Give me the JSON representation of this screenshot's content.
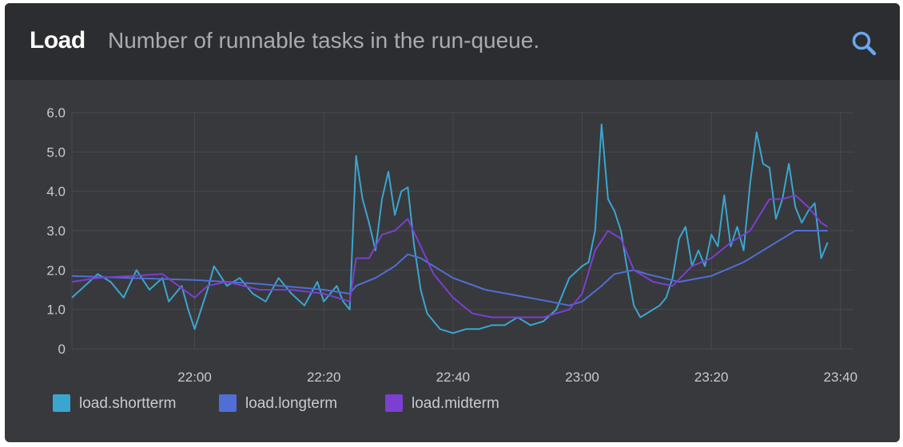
{
  "header": {
    "title": "Load",
    "subtitle": "Number of runnable tasks in the run-queue.",
    "search_icon": "search-icon"
  },
  "colors": {
    "panel_bg": "#38393c",
    "header_bg": "#2c2d30",
    "grid": "#48494d",
    "tick_text": "#c8cacd"
  },
  "chart_data": {
    "type": "line",
    "title": "Load",
    "subtitle": "Number of runnable tasks in the run-queue.",
    "xlabel": "",
    "ylabel": "",
    "x_ticks": [
      "22:00",
      "22:20",
      "22:40",
      "23:00",
      "23:20",
      "23:40"
    ],
    "y_ticks": [
      "0",
      "1.0",
      "2.0",
      "3.0",
      "4.0",
      "5.0",
      "6.0"
    ],
    "ylim": [
      0,
      6
    ],
    "xlim": [
      "21:41",
      "23:42"
    ],
    "grid": true,
    "legend_position": "bottom-left",
    "series": [
      {
        "name": "load.shortterm",
        "color": "#3aa6d0",
        "points": [
          [
            "21:41",
            1.3
          ],
          [
            "21:43",
            1.6
          ],
          [
            "21:45",
            1.9
          ],
          [
            "21:47",
            1.7
          ],
          [
            "21:49",
            1.3
          ],
          [
            "21:51",
            2.0
          ],
          [
            "21:53",
            1.5
          ],
          [
            "21:55",
            1.8
          ],
          [
            "21:56",
            1.2
          ],
          [
            "21:58",
            1.6
          ],
          [
            "21:59",
            1.0
          ],
          [
            "22:00",
            0.5
          ],
          [
            "22:02",
            1.5
          ],
          [
            "22:03",
            2.1
          ],
          [
            "22:05",
            1.6
          ],
          [
            "22:07",
            1.8
          ],
          [
            "22:09",
            1.4
          ],
          [
            "22:11",
            1.2
          ],
          [
            "22:13",
            1.8
          ],
          [
            "22:15",
            1.4
          ],
          [
            "22:17",
            1.1
          ],
          [
            "22:19",
            1.7
          ],
          [
            "22:20",
            1.2
          ],
          [
            "22:22",
            1.6
          ],
          [
            "22:23",
            1.2
          ],
          [
            "22:24",
            1.0
          ],
          [
            "22:25",
            4.9
          ],
          [
            "22:26",
            3.8
          ],
          [
            "22:27",
            3.2
          ],
          [
            "22:28",
            2.5
          ],
          [
            "22:29",
            3.8
          ],
          [
            "22:30",
            4.5
          ],
          [
            "22:31",
            3.4
          ],
          [
            "22:32",
            4.0
          ],
          [
            "22:33",
            4.1
          ],
          [
            "22:34",
            2.6
          ],
          [
            "22:35",
            1.5
          ],
          [
            "22:36",
            0.9
          ],
          [
            "22:37",
            0.7
          ],
          [
            "22:38",
            0.5
          ],
          [
            "22:40",
            0.4
          ],
          [
            "22:42",
            0.5
          ],
          [
            "22:44",
            0.5
          ],
          [
            "22:46",
            0.6
          ],
          [
            "22:48",
            0.6
          ],
          [
            "22:50",
            0.8
          ],
          [
            "22:52",
            0.6
          ],
          [
            "22:54",
            0.7
          ],
          [
            "22:56",
            1.0
          ],
          [
            "22:58",
            1.8
          ],
          [
            "23:00",
            2.1
          ],
          [
            "23:01",
            2.2
          ],
          [
            "23:02",
            3.0
          ],
          [
            "23:03",
            5.7
          ],
          [
            "23:04",
            3.8
          ],
          [
            "23:05",
            3.5
          ],
          [
            "23:06",
            3.0
          ],
          [
            "23:07",
            2.0
          ],
          [
            "23:08",
            1.1
          ],
          [
            "23:09",
            0.8
          ],
          [
            "23:10",
            0.9
          ],
          [
            "23:12",
            1.1
          ],
          [
            "23:13",
            1.3
          ],
          [
            "23:14",
            1.8
          ],
          [
            "23:15",
            2.8
          ],
          [
            "23:16",
            3.1
          ],
          [
            "23:17",
            2.1
          ],
          [
            "23:18",
            2.5
          ],
          [
            "23:19",
            2.1
          ],
          [
            "23:20",
            2.9
          ],
          [
            "23:21",
            2.6
          ],
          [
            "23:22",
            3.9
          ],
          [
            "23:23",
            2.6
          ],
          [
            "23:24",
            3.1
          ],
          [
            "23:25",
            2.5
          ],
          [
            "23:26",
            4.2
          ],
          [
            "23:27",
            5.5
          ],
          [
            "23:28",
            4.7
          ],
          [
            "23:29",
            4.6
          ],
          [
            "23:30",
            3.3
          ],
          [
            "23:31",
            3.8
          ],
          [
            "23:32",
            4.7
          ],
          [
            "23:33",
            3.6
          ],
          [
            "23:34",
            3.2
          ],
          [
            "23:35",
            3.5
          ],
          [
            "23:36",
            3.7
          ],
          [
            "23:37",
            2.3
          ],
          [
            "23:38",
            2.7
          ]
        ]
      },
      {
        "name": "load.longterm",
        "color": "#4f6fd6",
        "points": [
          [
            "21:41",
            1.85
          ],
          [
            "21:50",
            1.8
          ],
          [
            "22:00",
            1.75
          ],
          [
            "22:10",
            1.65
          ],
          [
            "22:20",
            1.5
          ],
          [
            "22:24",
            1.4
          ],
          [
            "22:25",
            1.6
          ],
          [
            "22:28",
            1.8
          ],
          [
            "22:31",
            2.1
          ],
          [
            "22:33",
            2.4
          ],
          [
            "22:35",
            2.3
          ],
          [
            "22:40",
            1.8
          ],
          [
            "22:45",
            1.5
          ],
          [
            "22:50",
            1.35
          ],
          [
            "22:55",
            1.2
          ],
          [
            "22:58",
            1.1
          ],
          [
            "23:00",
            1.2
          ],
          [
            "23:03",
            1.6
          ],
          [
            "23:05",
            1.9
          ],
          [
            "23:08",
            2.0
          ],
          [
            "23:10",
            1.9
          ],
          [
            "23:15",
            1.7
          ],
          [
            "23:20",
            1.85
          ],
          [
            "23:25",
            2.2
          ],
          [
            "23:30",
            2.7
          ],
          [
            "23:33",
            3.0
          ],
          [
            "23:36",
            3.0
          ],
          [
            "23:38",
            3.0
          ]
        ]
      },
      {
        "name": "load.midterm",
        "color": "#7b3fd1",
        "points": [
          [
            "21:41",
            1.7
          ],
          [
            "21:45",
            1.8
          ],
          [
            "21:50",
            1.85
          ],
          [
            "21:55",
            1.9
          ],
          [
            "22:00",
            1.3
          ],
          [
            "22:02",
            1.6
          ],
          [
            "22:05",
            1.7
          ],
          [
            "22:10",
            1.5
          ],
          [
            "22:15",
            1.5
          ],
          [
            "22:20",
            1.4
          ],
          [
            "22:24",
            1.2
          ],
          [
            "22:25",
            2.3
          ],
          [
            "22:27",
            2.3
          ],
          [
            "22:29",
            2.9
          ],
          [
            "22:31",
            3.0
          ],
          [
            "22:33",
            3.3
          ],
          [
            "22:35",
            2.6
          ],
          [
            "22:37",
            1.9
          ],
          [
            "22:40",
            1.3
          ],
          [
            "22:43",
            0.9
          ],
          [
            "22:46",
            0.8
          ],
          [
            "22:50",
            0.8
          ],
          [
            "22:54",
            0.8
          ],
          [
            "22:58",
            1.0
          ],
          [
            "23:00",
            1.4
          ],
          [
            "23:02",
            2.5
          ],
          [
            "23:04",
            3.0
          ],
          [
            "23:06",
            2.8
          ],
          [
            "23:08",
            2.0
          ],
          [
            "23:11",
            1.7
          ],
          [
            "23:14",
            1.6
          ],
          [
            "23:17",
            2.1
          ],
          [
            "23:20",
            2.3
          ],
          [
            "23:23",
            2.7
          ],
          [
            "23:26",
            3.0
          ],
          [
            "23:29",
            3.8
          ],
          [
            "23:31",
            3.8
          ],
          [
            "23:33",
            3.9
          ],
          [
            "23:35",
            3.6
          ],
          [
            "23:37",
            3.2
          ],
          [
            "23:38",
            3.1
          ]
        ]
      }
    ]
  }
}
